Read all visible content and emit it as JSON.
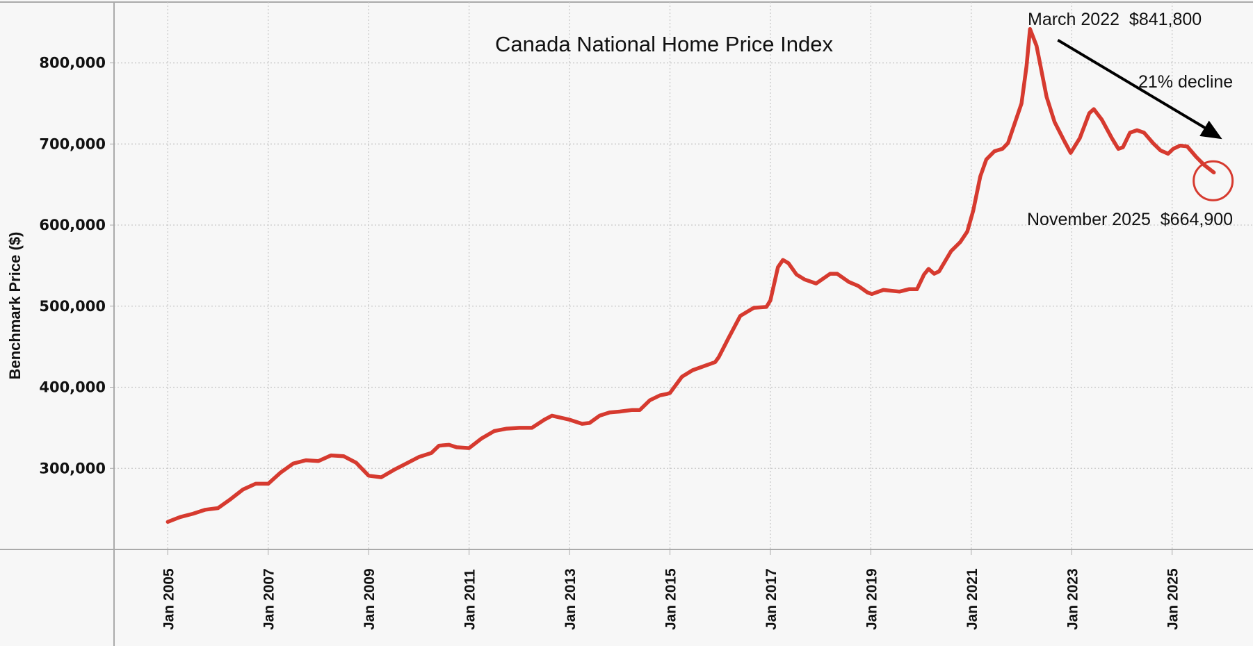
{
  "chart_data": {
    "type": "line",
    "title": "Canada National Home Price Index",
    "xlabel": "",
    "ylabel": "Benchmark Price ($)",
    "xlim": [
      2003.93,
      2026.61
    ],
    "ylim": [
      200000,
      875000
    ],
    "grid": true,
    "line_color": "#d63a2f",
    "y_ticks": [
      {
        "value": 300000,
        "label": "300,000"
      },
      {
        "value": 400000,
        "label": "400,000"
      },
      {
        "value": 500000,
        "label": "500,000"
      },
      {
        "value": 600000,
        "label": "600,000"
      },
      {
        "value": 700000,
        "label": "700,000"
      },
      {
        "value": 800000,
        "label": "800,000"
      }
    ],
    "x_ticks": [
      {
        "value": 2005,
        "label": "Jan 2005"
      },
      {
        "value": 2007,
        "label": "Jan 2007"
      },
      {
        "value": 2009,
        "label": "Jan 2009"
      },
      {
        "value": 2011,
        "label": "Jan 2011"
      },
      {
        "value": 2013,
        "label": "Jan 2013"
      },
      {
        "value": 2015,
        "label": "Jan 2015"
      },
      {
        "value": 2017,
        "label": "Jan 2017"
      },
      {
        "value": 2019,
        "label": "Jan 2019"
      },
      {
        "value": 2021,
        "label": "Jan 2021"
      },
      {
        "value": 2023,
        "label": "Jan 2023"
      },
      {
        "value": 2025,
        "label": "Jan 2025"
      }
    ],
    "series": [
      {
        "name": "Benchmark Price",
        "points": [
          [
            2005.0,
            234000
          ],
          [
            2005.25,
            240000
          ],
          [
            2005.5,
            244000
          ],
          [
            2005.75,
            249000
          ],
          [
            2006.0,
            251000
          ],
          [
            2006.25,
            262000
          ],
          [
            2006.5,
            274000
          ],
          [
            2006.75,
            281000
          ],
          [
            2007.0,
            281000
          ],
          [
            2007.25,
            295000
          ],
          [
            2007.5,
            306000
          ],
          [
            2007.75,
            310000
          ],
          [
            2008.0,
            309000
          ],
          [
            2008.25,
            316000
          ],
          [
            2008.5,
            315000
          ],
          [
            2008.75,
            307000
          ],
          [
            2009.0,
            291000
          ],
          [
            2009.25,
            289000
          ],
          [
            2009.5,
            298000
          ],
          [
            2009.75,
            306000
          ],
          [
            2010.0,
            314000
          ],
          [
            2010.25,
            319000
          ],
          [
            2010.4,
            328000
          ],
          [
            2010.6,
            329000
          ],
          [
            2010.75,
            326000
          ],
          [
            2011.0,
            325000
          ],
          [
            2011.25,
            337000
          ],
          [
            2011.5,
            346000
          ],
          [
            2011.75,
            349000
          ],
          [
            2012.0,
            350000
          ],
          [
            2012.25,
            350000
          ],
          [
            2012.5,
            360000
          ],
          [
            2012.65,
            365000
          ],
          [
            2013.0,
            360000
          ],
          [
            2013.25,
            355000
          ],
          [
            2013.4,
            356000
          ],
          [
            2013.6,
            365000
          ],
          [
            2013.8,
            369000
          ],
          [
            2014.0,
            370000
          ],
          [
            2014.25,
            372000
          ],
          [
            2014.4,
            372000
          ],
          [
            2014.6,
            384000
          ],
          [
            2014.8,
            390000
          ],
          [
            2014.95,
            392000
          ],
          [
            2015.0,
            393000
          ],
          [
            2015.24,
            413000
          ],
          [
            2015.45,
            421000
          ],
          [
            2015.9,
            431000
          ],
          [
            2015.97,
            437000
          ],
          [
            2016.16,
            460000
          ],
          [
            2016.4,
            488000
          ],
          [
            2016.67,
            498000
          ],
          [
            2016.92,
            499000
          ],
          [
            2017.0,
            507000
          ],
          [
            2017.15,
            548000
          ],
          [
            2017.25,
            557000
          ],
          [
            2017.36,
            553000
          ],
          [
            2017.52,
            539000
          ],
          [
            2017.68,
            533000
          ],
          [
            2017.91,
            528000
          ],
          [
            2018.19,
            540000
          ],
          [
            2018.33,
            540000
          ],
          [
            2018.56,
            530000
          ],
          [
            2018.75,
            525000
          ],
          [
            2018.93,
            517000
          ],
          [
            2019.02,
            515000
          ],
          [
            2019.25,
            520000
          ],
          [
            2019.57,
            518000
          ],
          [
            2019.76,
            521000
          ],
          [
            2019.92,
            521000
          ],
          [
            2020.06,
            539000
          ],
          [
            2020.15,
            546000
          ],
          [
            2020.26,
            540000
          ],
          [
            2020.36,
            543000
          ],
          [
            2020.6,
            568000
          ],
          [
            2020.78,
            579000
          ],
          [
            2020.92,
            592000
          ],
          [
            2021.04,
            618000
          ],
          [
            2021.18,
            660000
          ],
          [
            2021.3,
            681000
          ],
          [
            2021.46,
            691000
          ],
          [
            2021.62,
            694000
          ],
          [
            2021.73,
            701000
          ],
          [
            2022.0,
            750000
          ],
          [
            2022.1,
            796000
          ],
          [
            2022.17,
            841800
          ],
          [
            2022.3,
            821000
          ],
          [
            2022.5,
            758000
          ],
          [
            2022.66,
            727000
          ],
          [
            2022.85,
            704000
          ],
          [
            2022.98,
            689000
          ],
          [
            2023.16,
            707000
          ],
          [
            2023.35,
            738000
          ],
          [
            2023.44,
            743000
          ],
          [
            2023.6,
            730000
          ],
          [
            2023.8,
            707000
          ],
          [
            2023.93,
            694000
          ],
          [
            2024.02,
            696000
          ],
          [
            2024.16,
            714000
          ],
          [
            2024.3,
            717000
          ],
          [
            2024.44,
            714000
          ],
          [
            2024.62,
            701000
          ],
          [
            2024.77,
            692000
          ],
          [
            2024.92,
            688000
          ],
          [
            2025.02,
            694000
          ],
          [
            2025.16,
            698000
          ],
          [
            2025.3,
            697000
          ],
          [
            2025.48,
            684000
          ],
          [
            2025.64,
            674000
          ],
          [
            2025.83,
            664900
          ]
        ]
      }
    ],
    "annotations": {
      "peak": {
        "text": "March 2022  $841,800",
        "x": 2022.17,
        "y": 841800
      },
      "decline": {
        "text": "21% decline"
      },
      "latest": {
        "text": "November 2025  $664,900",
        "x": 2025.83,
        "y": 664900
      }
    }
  }
}
